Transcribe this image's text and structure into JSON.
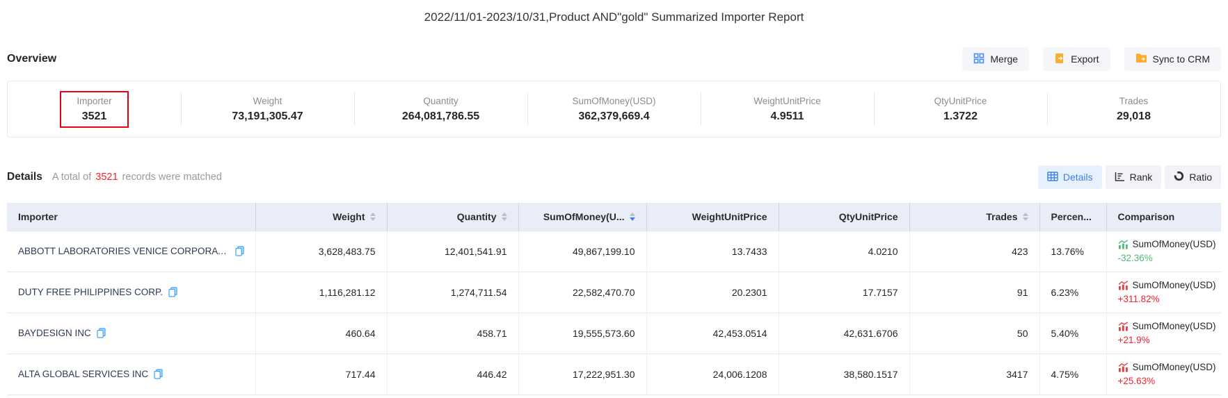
{
  "title": "2022/11/01-2023/10/31,Product AND\"gold\" Summarized Importer Report",
  "toolbar": {
    "merge_label": "Merge",
    "export_label": "Export",
    "sync_label": "Sync to CRM"
  },
  "overview": {
    "heading": "Overview",
    "stats": [
      {
        "label": "Importer",
        "value": "3521",
        "highlighted": true
      },
      {
        "label": "Weight",
        "value": "73,191,305.47"
      },
      {
        "label": "Quantity",
        "value": "264,081,786.55"
      },
      {
        "label": "SumOfMoney(USD)",
        "value": "362,379,669.4"
      },
      {
        "label": "WeightUnitPrice",
        "value": "4.9511"
      },
      {
        "label": "QtyUnitPrice",
        "value": "1.3722"
      },
      {
        "label": "Trades",
        "value": "29,018"
      }
    ]
  },
  "details": {
    "heading": "Details",
    "summary_prefix": "A total of",
    "summary_count": "3521",
    "summary_suffix": "records were matched",
    "tabs": [
      {
        "label": "Details",
        "active": true
      },
      {
        "label": "Rank",
        "active": false
      },
      {
        "label": "Ratio",
        "active": false
      }
    ]
  },
  "table": {
    "columns": [
      {
        "label": "Importer"
      },
      {
        "label": "Weight",
        "sortable": true
      },
      {
        "label": "Quantity",
        "sortable": true
      },
      {
        "label": "SumOfMoney(U...",
        "sortable": true,
        "sort": "desc"
      },
      {
        "label": "WeightUnitPrice"
      },
      {
        "label": "QtyUnitPrice"
      },
      {
        "label": "Trades",
        "sortable": true
      },
      {
        "label": "Percen..."
      },
      {
        "label": "Comparison"
      }
    ],
    "rows": [
      {
        "importer": "ABBOTT LABORATORIES VENICE CORPORAT...",
        "weight": "3,628,483.75",
        "quantity": "12,401,541.91",
        "sum": "49,867,199.10",
        "weight_unit_price": "13.7433",
        "qty_unit_price": "4.0210",
        "trades": "423",
        "percent": "13.76%",
        "comparison_label": "SumOfMoney(USD)",
        "comparison_value": "-32.36%",
        "trend": "down"
      },
      {
        "importer": "DUTY FREE PHILIPPINES CORP.",
        "weight": "1,116,281.12",
        "quantity": "1,274,711.54",
        "sum": "22,582,470.70",
        "weight_unit_price": "20.2301",
        "qty_unit_price": "17.7157",
        "trades": "91",
        "percent": "6.23%",
        "comparison_label": "SumOfMoney(USD)",
        "comparison_value": "+311.82%",
        "trend": "up"
      },
      {
        "importer": "BAYDESIGN INC",
        "weight": "460.64",
        "quantity": "458.71",
        "sum": "19,555,573.60",
        "weight_unit_price": "42,453.0514",
        "qty_unit_price": "42,631.6706",
        "trades": "50",
        "percent": "5.40%",
        "comparison_label": "SumOfMoney(USD)",
        "comparison_value": "+21.9%",
        "trend": "up"
      },
      {
        "importer": "ALTA GLOBAL SERVICES INC",
        "weight": "717.44",
        "quantity": "446.42",
        "sum": "17,222,951.30",
        "weight_unit_price": "24,006.1208",
        "qty_unit_price": "38,580.1517",
        "trades": "3417",
        "percent": "4.75%",
        "comparison_label": "SumOfMoney(USD)",
        "comparison_value": "+25.63%",
        "trend": "up"
      }
    ]
  },
  "colors": {
    "accent_blue": "#3d7fe8",
    "highlight_box_red": "#e60012",
    "count_red": "#f5222d",
    "negative_green": "#52b97a",
    "positive_red": "#f5222d",
    "icon_orange": "#ffab2e",
    "header_bg": "#e9edf8"
  }
}
